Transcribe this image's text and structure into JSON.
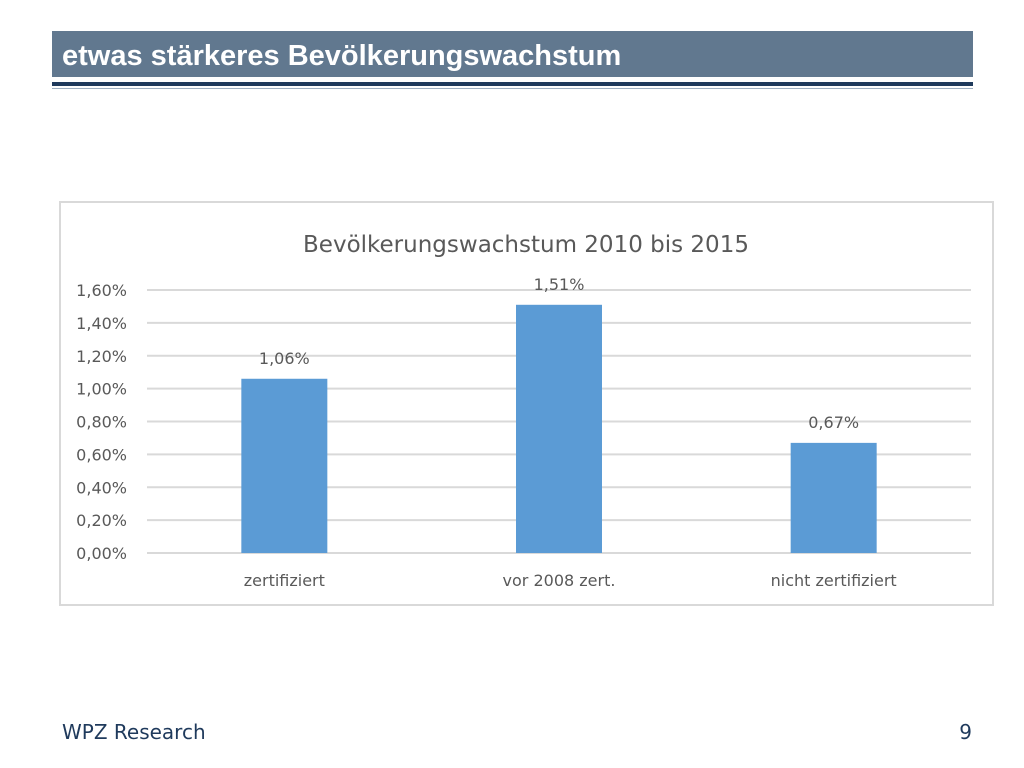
{
  "slide": {
    "title": "etwas stärkeres Bevölkerungswachstum",
    "footer_text": "WPZ Research",
    "page_number": "9"
  },
  "colors": {
    "title_bar": "#61788f",
    "bar": "#5b9bd5",
    "grid": "#d9d9d9",
    "text": "#595959"
  },
  "chart_data": {
    "type": "bar",
    "title": "Bevölkerungswachstum  2010 bis 2015",
    "categories": [
      "zertifiziert",
      "vor 2008 zert.",
      "nicht zertifiziert"
    ],
    "values": [
      1.06,
      1.51,
      0.67
    ],
    "value_labels": [
      "1,06%",
      "1,51%",
      "0,67%"
    ],
    "ylim": [
      0,
      1.6
    ],
    "ytick_values": [
      0,
      0.2,
      0.4,
      0.6,
      0.8,
      1.0,
      1.2,
      1.4,
      1.6
    ],
    "ytick_labels": [
      "0,00%",
      "0,20%",
      "0,40%",
      "0,60%",
      "0,80%",
      "1,00%",
      "1,20%",
      "1,40%",
      "1,60%"
    ],
    "grid": true,
    "legend": false,
    "xlabel": "",
    "ylabel": ""
  }
}
